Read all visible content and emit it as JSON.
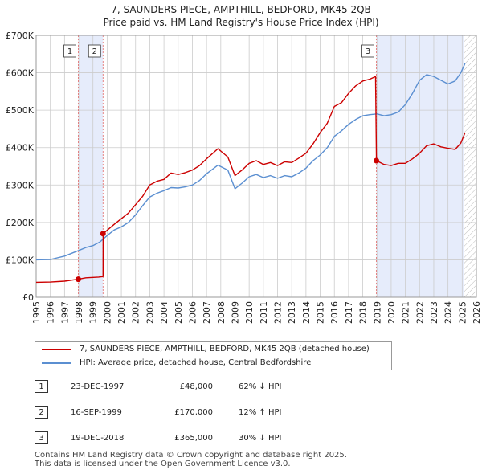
{
  "chart_data": {
    "type": "line",
    "title": "7, SAUNDERS PIECE, AMPTHILL, BEDFORD, MK45 2QB",
    "subtitle": "Price paid vs. HM Land Registry's House Price Index (HPI)",
    "xlim": [
      1995,
      2026
    ],
    "ylim": [
      0,
      700000
    ],
    "x_ticks": [
      "1995",
      "1996",
      "1997",
      "1998",
      "1999",
      "2000",
      "2001",
      "2002",
      "2003",
      "2004",
      "2005",
      "2006",
      "2007",
      "2008",
      "2009",
      "2010",
      "2011",
      "2012",
      "2013",
      "2014",
      "2015",
      "2016",
      "2017",
      "2018",
      "2019",
      "2020",
      "2021",
      "2022",
      "2023",
      "2024",
      "2025",
      "2026"
    ],
    "y_ticks": [
      {
        "value": 0,
        "label": "£0"
      },
      {
        "value": 100000,
        "label": "£100K"
      },
      {
        "value": 200000,
        "label": "£200K"
      },
      {
        "value": 300000,
        "label": "£300K"
      },
      {
        "value": 400000,
        "label": "£400K"
      },
      {
        "value": 500000,
        "label": "£500K"
      },
      {
        "value": 600000,
        "label": "£600K"
      },
      {
        "value": 700000,
        "label": "£700K"
      }
    ],
    "grid": true,
    "series": [
      {
        "name": "7, SAUNDERS PIECE, AMPTHILL, BEDFORD, MK45 2QB (detached house)",
        "color": "#cc0000",
        "points": [
          [
            1995.0,
            40000
          ],
          [
            1996.0,
            40500
          ],
          [
            1997.0,
            43000
          ],
          [
            1997.97,
            48000
          ],
          [
            1998.5,
            52000
          ],
          [
            1999.4,
            54000
          ],
          [
            1999.71,
            55500
          ],
          [
            1999.72,
            170000
          ],
          [
            2000.5,
            195000
          ],
          [
            2001.5,
            225000
          ],
          [
            2002.5,
            270000
          ],
          [
            2003.0,
            300000
          ],
          [
            2003.5,
            310000
          ],
          [
            2004.0,
            315000
          ],
          [
            2004.5,
            332000
          ],
          [
            2005.0,
            328000
          ],
          [
            2005.5,
            333000
          ],
          [
            2006.0,
            340000
          ],
          [
            2006.5,
            352000
          ],
          [
            2007.0,
            370000
          ],
          [
            2007.8,
            397000
          ],
          [
            2008.5,
            375000
          ],
          [
            2009.0,
            325000
          ],
          [
            2009.5,
            340000
          ],
          [
            2010.0,
            358000
          ],
          [
            2010.5,
            365000
          ],
          [
            2011.0,
            355000
          ],
          [
            2011.5,
            360000
          ],
          [
            2012.0,
            352000
          ],
          [
            2012.5,
            362000
          ],
          [
            2013.0,
            360000
          ],
          [
            2013.5,
            372000
          ],
          [
            2014.0,
            385000
          ],
          [
            2014.5,
            410000
          ],
          [
            2015.0,
            440000
          ],
          [
            2015.5,
            465000
          ],
          [
            2016.0,
            510000
          ],
          [
            2016.5,
            520000
          ],
          [
            2017.0,
            545000
          ],
          [
            2017.5,
            565000
          ],
          [
            2018.0,
            578000
          ],
          [
            2018.5,
            583000
          ],
          [
            2018.9,
            590000
          ],
          [
            2018.96,
            365000
          ],
          [
            2019.5,
            355000
          ],
          [
            2020.0,
            352000
          ],
          [
            2020.5,
            358000
          ],
          [
            2021.0,
            358000
          ],
          [
            2021.5,
            370000
          ],
          [
            2022.0,
            385000
          ],
          [
            2022.5,
            405000
          ],
          [
            2023.0,
            410000
          ],
          [
            2023.5,
            402000
          ],
          [
            2024.0,
            398000
          ],
          [
            2024.5,
            395000
          ],
          [
            2024.9,
            412000
          ],
          [
            2025.2,
            440000
          ]
        ]
      },
      {
        "name": "HPI: Average price, detached house, Central Bedfordshire",
        "color": "#5b8fd1",
        "points": [
          [
            1995.0,
            100000
          ],
          [
            1996.0,
            101000
          ],
          [
            1997.0,
            110000
          ],
          [
            1998.0,
            125000
          ],
          [
            1998.5,
            133000
          ],
          [
            1999.0,
            138000
          ],
          [
            1999.5,
            148000
          ],
          [
            2000.0,
            165000
          ],
          [
            2000.5,
            180000
          ],
          [
            2001.0,
            188000
          ],
          [
            2001.5,
            200000
          ],
          [
            2002.0,
            220000
          ],
          [
            2002.5,
            245000
          ],
          [
            2003.0,
            268000
          ],
          [
            2003.5,
            278000
          ],
          [
            2004.0,
            285000
          ],
          [
            2004.5,
            293000
          ],
          [
            2005.0,
            292000
          ],
          [
            2005.5,
            295000
          ],
          [
            2006.0,
            300000
          ],
          [
            2006.5,
            312000
          ],
          [
            2007.0,
            330000
          ],
          [
            2007.8,
            353000
          ],
          [
            2008.5,
            340000
          ],
          [
            2009.0,
            290000
          ],
          [
            2009.5,
            305000
          ],
          [
            2010.0,
            322000
          ],
          [
            2010.5,
            328000
          ],
          [
            2011.0,
            320000
          ],
          [
            2011.5,
            325000
          ],
          [
            2012.0,
            318000
          ],
          [
            2012.5,
            325000
          ],
          [
            2013.0,
            322000
          ],
          [
            2013.5,
            332000
          ],
          [
            2014.0,
            345000
          ],
          [
            2014.5,
            365000
          ],
          [
            2015.0,
            380000
          ],
          [
            2015.5,
            400000
          ],
          [
            2016.0,
            430000
          ],
          [
            2016.5,
            445000
          ],
          [
            2017.0,
            462000
          ],
          [
            2017.5,
            475000
          ],
          [
            2018.0,
            485000
          ],
          [
            2018.5,
            488000
          ],
          [
            2019.0,
            490000
          ],
          [
            2019.5,
            485000
          ],
          [
            2020.0,
            488000
          ],
          [
            2020.5,
            495000
          ],
          [
            2021.0,
            515000
          ],
          [
            2021.5,
            545000
          ],
          [
            2022.0,
            580000
          ],
          [
            2022.5,
            595000
          ],
          [
            2023.0,
            590000
          ],
          [
            2023.5,
            580000
          ],
          [
            2024.0,
            570000
          ],
          [
            2024.5,
            578000
          ],
          [
            2024.9,
            600000
          ],
          [
            2025.2,
            625000
          ]
        ]
      }
    ],
    "sales": [
      {
        "label": "1",
        "x": 1997.97,
        "value": 48000
      },
      {
        "label": "2",
        "x": 1999.71,
        "value": 170000
      },
      {
        "label": "3",
        "x": 2018.96,
        "value": 365000
      }
    ],
    "shaded_regions": [
      [
        1997.97,
        1999.71
      ],
      [
        2018.96,
        2025.15
      ]
    ],
    "hatch_from": 2025.15
  },
  "legend": {
    "property_label": "7, SAUNDERS PIECE, AMPTHILL, BEDFORD, MK45 2QB (detached house)",
    "hpi_label": "HPI: Average price, detached house, Central Bedfordshire"
  },
  "sales_table": [
    {
      "num": "1",
      "date": "23-DEC-1997",
      "price": "£48,000",
      "hpi": "62% ↓ HPI"
    },
    {
      "num": "2",
      "date": "16-SEP-1999",
      "price": "£170,000",
      "hpi": "12% ↑ HPI"
    },
    {
      "num": "3",
      "date": "19-DEC-2018",
      "price": "£365,000",
      "hpi": "30% ↓ HPI"
    }
  ],
  "footer": {
    "line1": "Contains HM Land Registry data © Crown copyright and database right 2025.",
    "line2": "This data is licensed under the Open Government Licence v3.0."
  }
}
